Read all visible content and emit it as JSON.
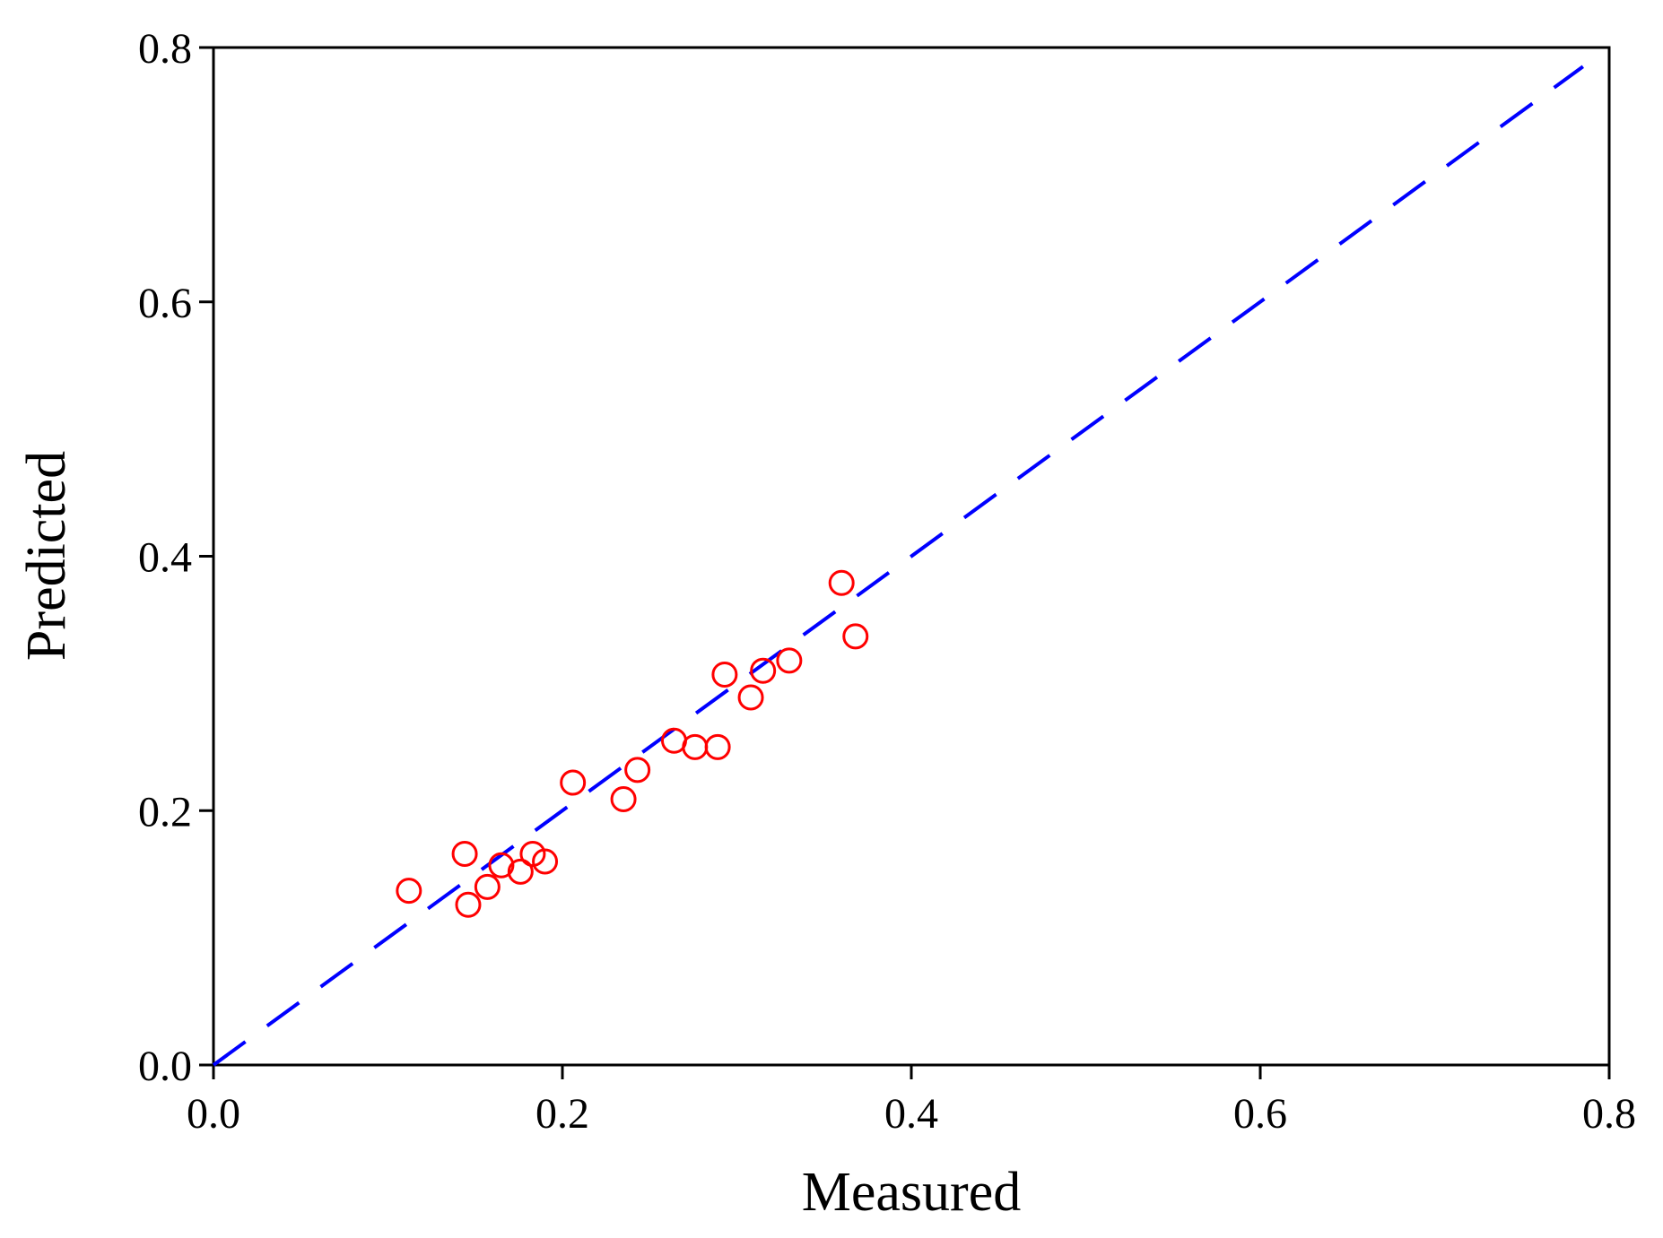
{
  "chart_data": {
    "type": "scatter",
    "x_label": "Measured",
    "y_label": "Predicted",
    "xlim": [
      0,
      0.8
    ],
    "ylim": [
      0,
      0.8
    ],
    "xticks": [
      {
        "value": 0,
        "label": "0.0"
      },
      {
        "value": 0.2,
        "label": "0.2"
      },
      {
        "value": 0.4,
        "label": "0.4"
      },
      {
        "value": 0.6,
        "label": "0.6"
      },
      {
        "value": 0.8,
        "label": "0.8"
      }
    ],
    "yticks": [
      {
        "value": 0,
        "label": "0.0"
      },
      {
        "value": 0.2,
        "label": "0.2"
      },
      {
        "value": 0.4,
        "label": "0.4"
      },
      {
        "value": 0.6,
        "label": "0.6"
      },
      {
        "value": 0.8,
        "label": "0.8"
      }
    ],
    "grid": false,
    "series": [
      {
        "color": "#ff0000",
        "marker": "open-circle",
        "x": [
          0.112,
          0.144,
          0.146,
          0.157,
          0.165,
          0.176,
          0.183,
          0.19,
          0.206,
          0.235,
          0.243,
          0.264,
          0.276,
          0.289,
          0.293,
          0.308,
          0.315,
          0.33,
          0.36,
          0.368
        ],
        "values": [
          0.137,
          0.166,
          0.126,
          0.14,
          0.157,
          0.152,
          0.166,
          0.16,
          0.222,
          0.209,
          0.232,
          0.255,
          0.25,
          0.25,
          0.307,
          0.289,
          0.31,
          0.318,
          0.379,
          0.337
        ]
      }
    ],
    "reference_line": {
      "color": "#0000ff",
      "style": "dashed",
      "x": [
        0,
        0.785
      ],
      "values": [
        0,
        0.785
      ]
    }
  }
}
